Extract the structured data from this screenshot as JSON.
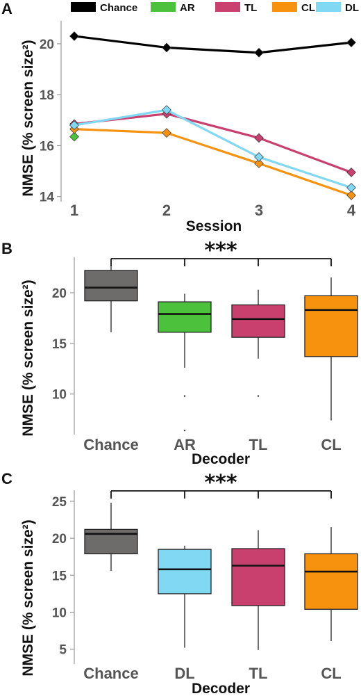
{
  "chart_data": [
    {
      "type": "line",
      "panel_label": "A",
      "xlabel": "Session",
      "ylabel": "NMSE (% screen size²)",
      "x": [
        1,
        2,
        3,
        4
      ],
      "x_tick_labels": [
        "1",
        "2",
        "3",
        "4"
      ],
      "ylim": [
        13.8,
        20.9
      ],
      "y_ticks": [
        14,
        16,
        18,
        20
      ],
      "legend_placement": "top",
      "grid": false,
      "series": [
        {
          "name": "Chance",
          "color": "#000000",
          "values": [
            20.3,
            19.85,
            19.65,
            20.05
          ]
        },
        {
          "name": "AR",
          "color": "#4cc13b",
          "values": [
            16.35,
            null,
            null,
            null
          ]
        },
        {
          "name": "TL",
          "color": "#c93f6e",
          "values": [
            16.85,
            17.25,
            16.3,
            14.95
          ]
        },
        {
          "name": "CL",
          "color": "#f7920f",
          "values": [
            16.65,
            16.5,
            15.3,
            14.05
          ]
        },
        {
          "name": "DL",
          "color": "#80d8f2",
          "values": [
            16.8,
            17.4,
            15.55,
            14.35
          ]
        }
      ]
    },
    {
      "type": "box",
      "panel_label": "B",
      "xlabel": "Decoder",
      "ylabel": "NMSE (% screen size²)",
      "ylim": [
        6,
        23.5
      ],
      "y_ticks": [
        10,
        15,
        20
      ],
      "significance": "***",
      "categories": [
        "Chance",
        "AR",
        "TL",
        "CL"
      ],
      "boxes": [
        {
          "name": "Chance",
          "color": "#6e6b6b",
          "whisker_low": 16.1,
          "q1": 19.2,
          "median": 20.5,
          "q3": 22.2,
          "whisker_high": 22.7,
          "outliers": []
        },
        {
          "name": "AR",
          "color": "#4cc13b",
          "whisker_low": 12.6,
          "q1": 16.1,
          "median": 17.9,
          "q3": 19.1,
          "whisker_high": 19.9,
          "outliers": [
            9.8,
            6.4
          ]
        },
        {
          "name": "TL",
          "color": "#c93f6e",
          "whisker_low": 13.5,
          "q1": 15.6,
          "median": 17.4,
          "q3": 18.8,
          "whisker_high": 20.3,
          "outliers": [
            9.8
          ]
        },
        {
          "name": "CL",
          "color": "#f7920f",
          "whisker_low": 7.4,
          "q1": 13.7,
          "median": 18.3,
          "q3": 19.7,
          "whisker_high": 21.5,
          "outliers": []
        }
      ]
    },
    {
      "type": "box",
      "panel_label": "C",
      "xlabel": "Decoder",
      "ylabel": "NMSE (% screen size²)",
      "ylim": [
        3,
        26.5
      ],
      "y_ticks": [
        5,
        10,
        15,
        20,
        25
      ],
      "significance": "***",
      "categories": [
        "Chance",
        "DL",
        "TL",
        "CL"
      ],
      "boxes": [
        {
          "name": "Chance",
          "color": "#6e6b6b",
          "whisker_low": 15.6,
          "q1": 17.9,
          "median": 20.6,
          "q3": 21.2,
          "whisker_high": 24.8,
          "outliers": []
        },
        {
          "name": "DL",
          "color": "#80d8f2",
          "whisker_low": 5.2,
          "q1": 12.5,
          "median": 15.8,
          "q3": 18.5,
          "whisker_high": 19.0,
          "outliers": []
        },
        {
          "name": "TL",
          "color": "#c93f6e",
          "whisker_low": 4.9,
          "q1": 10.9,
          "median": 16.3,
          "q3": 18.6,
          "whisker_high": 21.1,
          "outliers": []
        },
        {
          "name": "CL",
          "color": "#f7920f",
          "whisker_low": 6.1,
          "q1": 10.4,
          "median": 15.5,
          "q3": 17.9,
          "whisker_high": 21.5,
          "outliers": []
        }
      ]
    }
  ]
}
